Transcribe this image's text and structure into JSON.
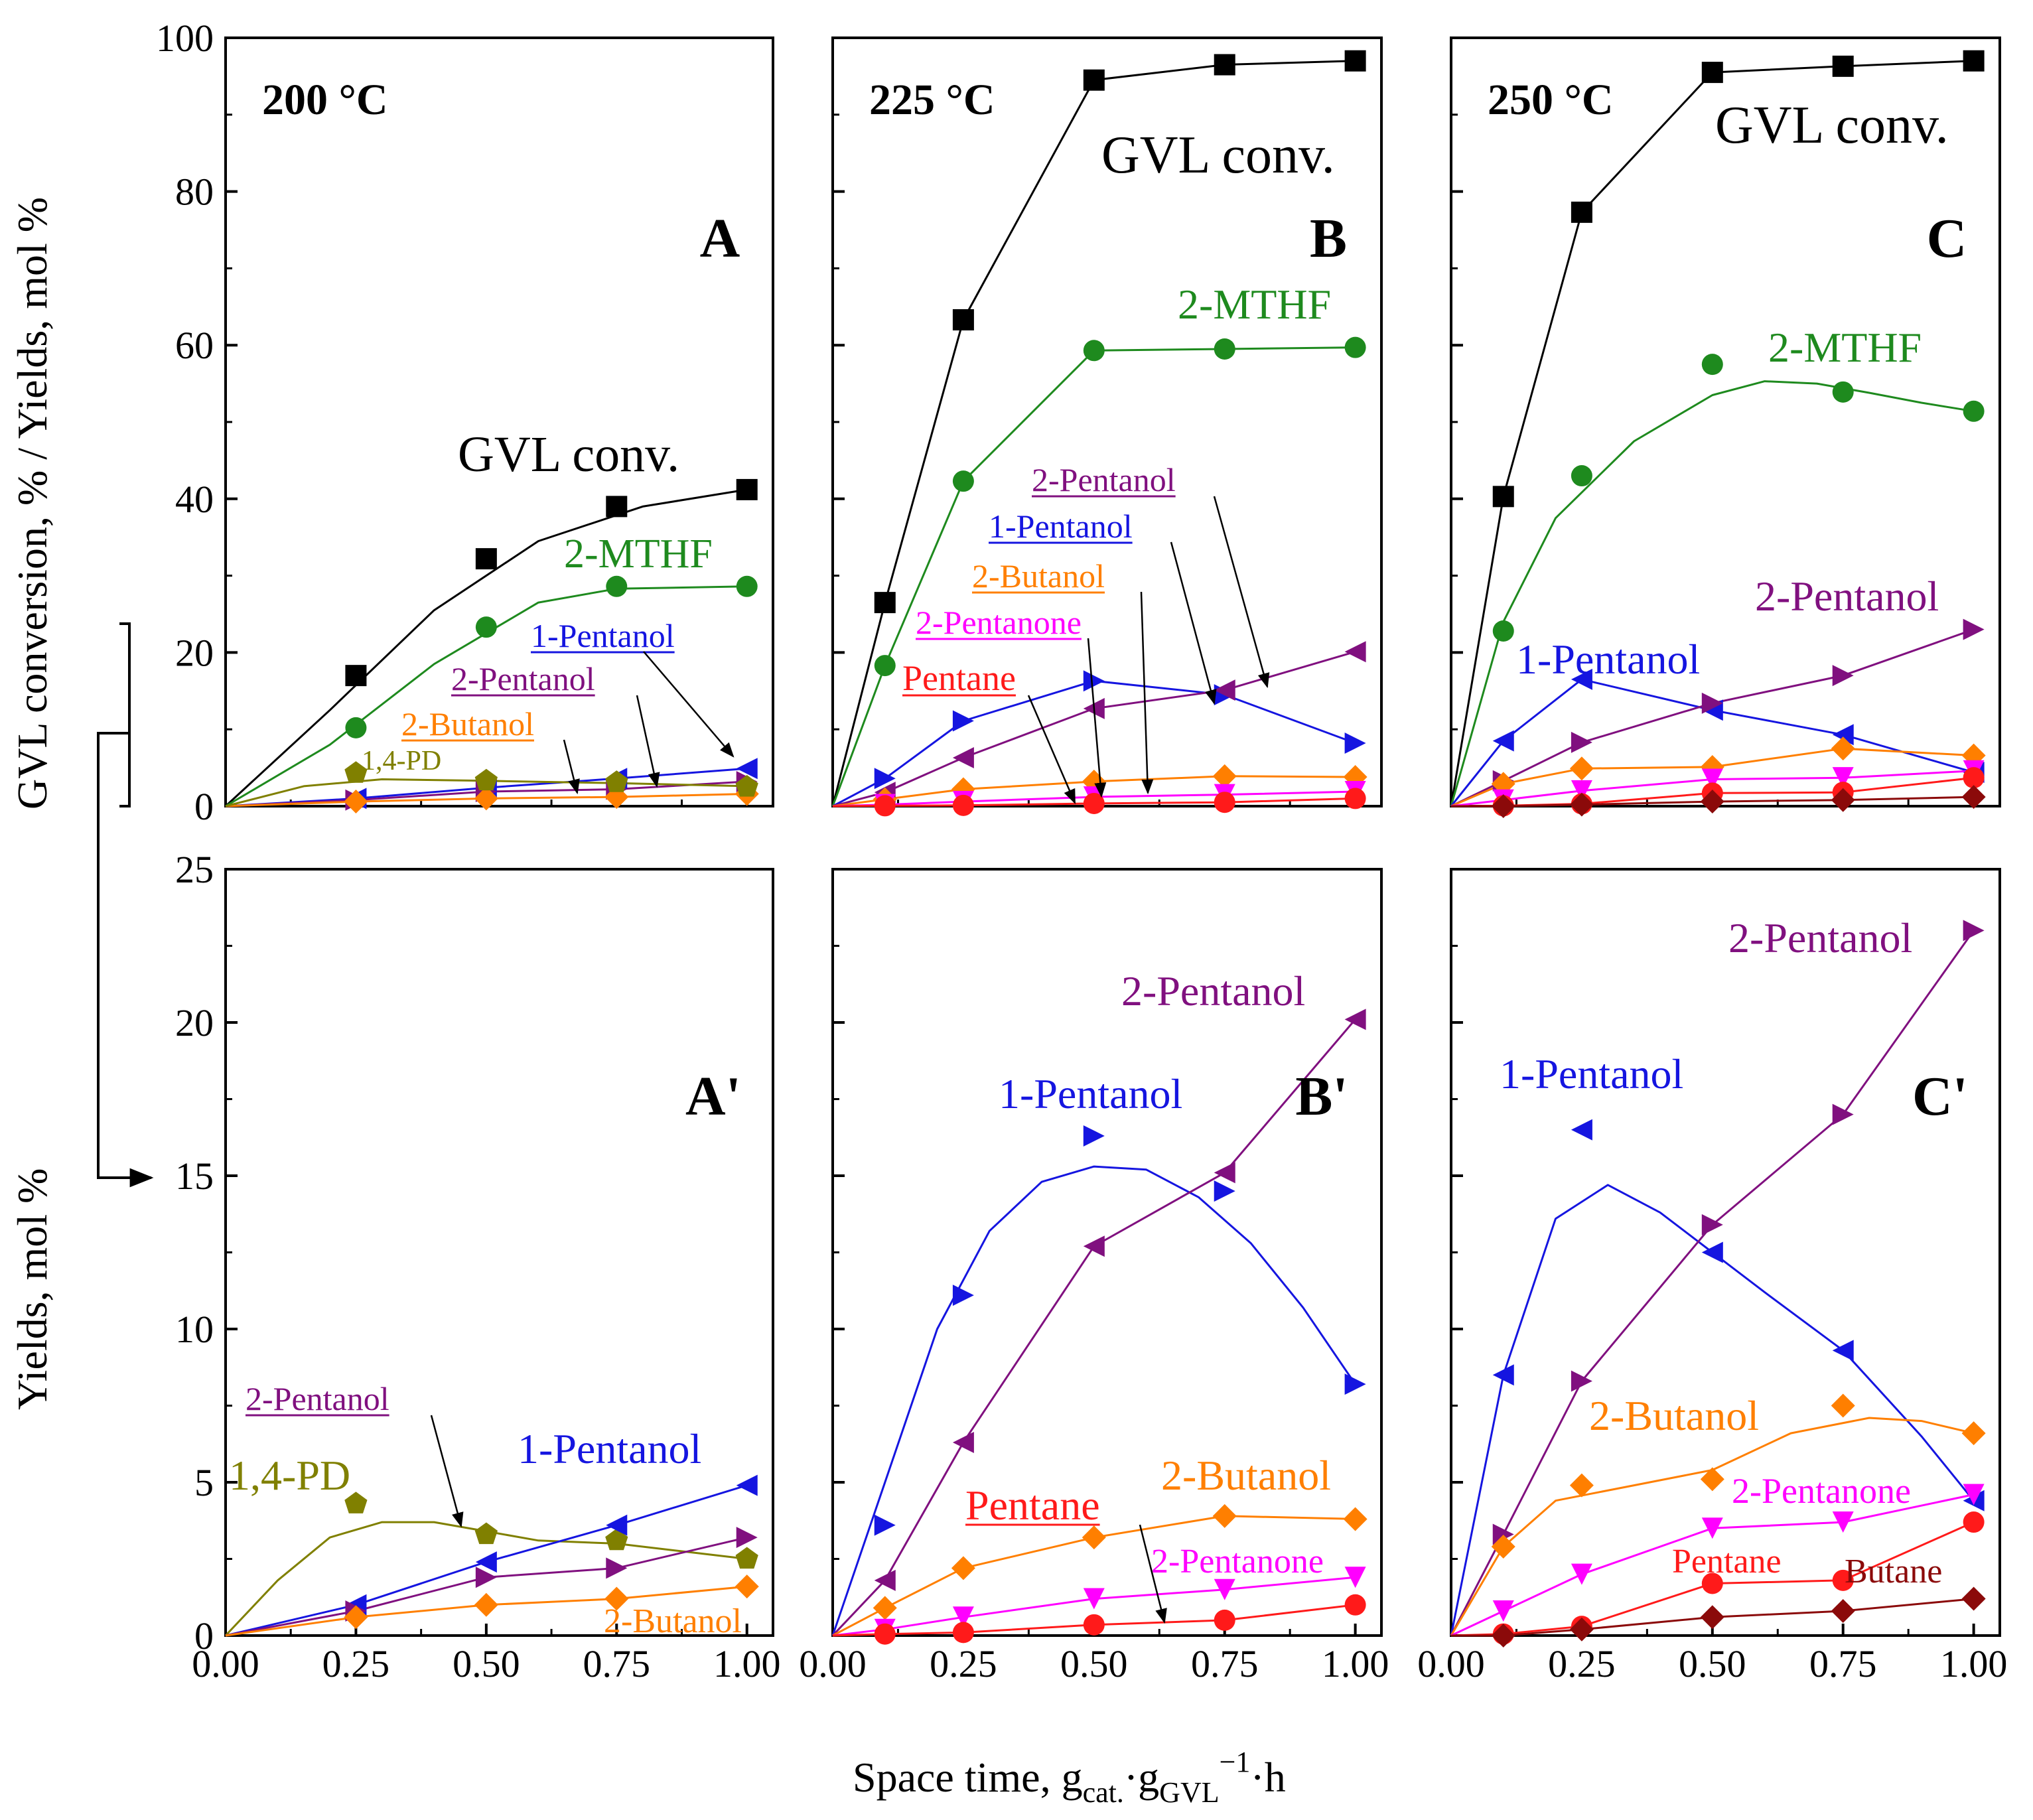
{
  "figure": {
    "y_label_top": "GVL conversion, % / Yields, mol %",
    "y_label_bottom": "Yields, mol %",
    "x_label": {
      "main": "Space time, g",
      "sub1": "cat.",
      "mid": "·g",
      "sub2": "GVL",
      "sup": "−1",
      "end": "·h"
    }
  },
  "chart_data": [
    {
      "panel": "A",
      "temperature": "200 °C",
      "type": "line",
      "xlim": [
        0,
        1.05
      ],
      "ylim": [
        0,
        100
      ],
      "xticks": [
        "0.00",
        "0.25",
        "0.50",
        "0.75",
        "1.00"
      ],
      "yticks": [
        "0",
        "20",
        "40",
        "60",
        "80",
        "100"
      ],
      "series": [
        {
          "name": "GVL conv.",
          "color": "#000000",
          "marker": "square",
          "x": [
            0,
            0.25,
            0.5,
            0.75,
            1.0
          ],
          "y": [
            0,
            17,
            32.2,
            39,
            41.2
          ],
          "curve": [
            [
              0,
              0
            ],
            [
              0.2,
              12.5
            ],
            [
              0.4,
              25.5
            ],
            [
              0.6,
              34.5
            ],
            [
              0.8,
              39
            ],
            [
              1.0,
              41.2
            ]
          ]
        },
        {
          "name": "2-MTHF",
          "color": "#1e8a1e",
          "marker": "circle",
          "x": [
            0,
            0.25,
            0.5,
            0.75,
            1.0
          ],
          "y": [
            0,
            10.2,
            23.3,
            28.6,
            28.6
          ],
          "curve": [
            [
              0,
              0
            ],
            [
              0.2,
              8
            ],
            [
              0.4,
              18.5
            ],
            [
              0.6,
              26.5
            ],
            [
              0.75,
              28.3
            ],
            [
              1.0,
              28.6
            ]
          ]
        },
        {
          "name": "1-Pentanol",
          "color": "#1515e0",
          "marker": "tri-left",
          "x": [
            0,
            0.25,
            0.5,
            0.75,
            1.0
          ],
          "y": [
            0,
            1,
            2.4,
            3.6,
            4.9
          ]
        },
        {
          "name": "2-Pentanol",
          "color": "#80107f",
          "marker": "tri-right",
          "x": [
            0,
            0.25,
            0.5,
            0.75,
            1.0
          ],
          "y": [
            0,
            0.8,
            1.9,
            2.2,
            3.2
          ]
        },
        {
          "name": "2-Butanol",
          "color": "#ff7f00",
          "marker": "diamond",
          "x": [
            0,
            0.25,
            0.5,
            0.75,
            1.0
          ],
          "y": [
            0,
            0.6,
            1,
            1.2,
            1.6
          ]
        },
        {
          "name": "1,4-PD",
          "color": "#808000",
          "marker": "pentagon",
          "x": [
            0,
            0.25,
            0.5,
            0.75,
            1.0
          ],
          "y": [
            0,
            4.3,
            3.3,
            3.1,
            2.5
          ],
          "curve": [
            [
              0,
              0
            ],
            [
              0.15,
              2.6
            ],
            [
              0.3,
              3.5
            ],
            [
              0.5,
              3.3
            ],
            [
              0.75,
              3
            ],
            [
              1.0,
              2.6
            ]
          ]
        }
      ]
    },
    {
      "panel": "B",
      "temperature": "225 °C",
      "type": "line",
      "xlim": [
        0,
        1.05
      ],
      "ylim": [
        0,
        100
      ],
      "series": [
        {
          "name": "GVL conv.",
          "color": "#000000",
          "marker": "square",
          "x": [
            0,
            0.1,
            0.25,
            0.5,
            0.75,
            1.0
          ],
          "y": [
            0,
            26.5,
            63.3,
            94.5,
            96.5,
            97
          ]
        },
        {
          "name": "2-MTHF",
          "color": "#1e8a1e",
          "marker": "circle",
          "x": [
            0,
            0.1,
            0.25,
            0.5,
            0.75,
            1.0
          ],
          "y": [
            0,
            18.3,
            42.3,
            59.3,
            59.5,
            59.7
          ]
        },
        {
          "name": "1-Pentanol",
          "color": "#1515e0",
          "marker": "tri-right",
          "x": [
            0,
            0.1,
            0.25,
            0.5,
            0.75,
            1.0
          ],
          "y": [
            0,
            3.6,
            11.1,
            16.3,
            14.5,
            8.2
          ]
        },
        {
          "name": "2-Pentanol",
          "color": "#80107f",
          "marker": "tri-left",
          "x": [
            0,
            0.1,
            0.25,
            0.5,
            0.75,
            1.0
          ],
          "y": [
            0,
            1.8,
            6.3,
            12.7,
            15.1,
            20.1
          ]
        },
        {
          "name": "2-Butanol",
          "color": "#ff7f00",
          "marker": "diamond",
          "x": [
            0,
            0.1,
            0.25,
            0.5,
            0.75,
            1.0
          ],
          "y": [
            0,
            0.9,
            2.2,
            3.2,
            3.9,
            3.8
          ]
        },
        {
          "name": "2-Pentanone",
          "color": "#ff00ff",
          "marker": "tri-down",
          "x": [
            0,
            0.1,
            0.25,
            0.5,
            0.75,
            1.0
          ],
          "y": [
            0,
            0.2,
            0.6,
            1.2,
            1.5,
            1.9
          ]
        },
        {
          "name": "Pentane",
          "color": "#ff1a1a",
          "marker": "circle",
          "x": [
            0,
            0.1,
            0.25,
            0.5,
            0.75,
            1.0
          ],
          "y": [
            0,
            0.05,
            0.1,
            0.35,
            0.5,
            1
          ]
        }
      ]
    },
    {
      "panel": "C",
      "temperature": "250 °C",
      "type": "line",
      "xlim": [
        0,
        1.05
      ],
      "ylim": [
        0,
        100
      ],
      "series": [
        {
          "name": "GVL conv.",
          "color": "#000000",
          "marker": "square",
          "x": [
            0,
            0.1,
            0.25,
            0.5,
            0.75,
            1.0
          ],
          "y": [
            0,
            40.3,
            77.3,
            95.5,
            96.3,
            97
          ]
        },
        {
          "name": "2-MTHF",
          "color": "#1e8a1e",
          "marker": "circle",
          "x": [
            0,
            0.1,
            0.25,
            0.5,
            0.75,
            1.0
          ],
          "y": [
            0,
            22.8,
            43,
            57.5,
            53.9,
            51.4
          ],
          "curve": [
            [
              0,
              0
            ],
            [
              0.1,
              24
            ],
            [
              0.2,
              37.5
            ],
            [
              0.35,
              47.5
            ],
            [
              0.5,
              53.5
            ],
            [
              0.6,
              55.3
            ],
            [
              0.7,
              55
            ],
            [
              0.8,
              53.8
            ],
            [
              0.9,
              52.5
            ],
            [
              1.0,
              51.4
            ]
          ]
        },
        {
          "name": "1-Pentanol",
          "color": "#1515e0",
          "marker": "tri-left",
          "x": [
            0,
            0.1,
            0.25,
            0.5,
            0.75,
            1.0
          ],
          "y": [
            0,
            8.5,
            16.5,
            12.5,
            9.3,
            4.4
          ]
        },
        {
          "name": "2-Pentanol",
          "color": "#80107f",
          "marker": "tri-right",
          "x": [
            0,
            0.1,
            0.25,
            0.5,
            0.75,
            1.0
          ],
          "y": [
            0,
            3.3,
            8.3,
            13.4,
            17,
            23
          ]
        },
        {
          "name": "2-Butanol",
          "color": "#ff7f00",
          "marker": "diamond",
          "x": [
            0,
            0.1,
            0.25,
            0.5,
            0.75,
            1.0
          ],
          "y": [
            0,
            2.9,
            4.9,
            5.1,
            7.5,
            6.6
          ]
        },
        {
          "name": "2-Pentanone",
          "color": "#ff00ff",
          "marker": "tri-down",
          "x": [
            0,
            0.1,
            0.25,
            0.5,
            0.75,
            1.0
          ],
          "y": [
            0,
            0.8,
            2,
            3.5,
            3.7,
            4.6
          ]
        },
        {
          "name": "Pentane",
          "color": "#ff1a1a",
          "marker": "circle",
          "x": [
            0,
            0.1,
            0.25,
            0.5,
            0.75,
            1.0
          ],
          "y": [
            0,
            0.05,
            0.3,
            1.7,
            1.8,
            3.7
          ]
        },
        {
          "name": "Butane",
          "color": "#8b0a0a",
          "marker": "diamond",
          "x": [
            0,
            0.1,
            0.25,
            0.5,
            0.75,
            1.0
          ],
          "y": [
            0,
            0,
            0.2,
            0.6,
            0.8,
            1.2
          ]
        }
      ]
    },
    {
      "panel": "A'",
      "type": "line",
      "xlim": [
        0,
        1.05
      ],
      "ylim": [
        0,
        25
      ],
      "xticks": [
        "0.00",
        "0.25",
        "0.50",
        "0.75",
        "1.00"
      ],
      "yticks": [
        "0",
        "5",
        "10",
        "15",
        "20",
        "25"
      ],
      "series": [
        {
          "name": "1,4-PD",
          "color": "#808000",
          "marker": "pentagon",
          "x": [
            0,
            0.25,
            0.5,
            0.75,
            1.0
          ],
          "y": [
            0,
            4.3,
            3.3,
            3.1,
            2.5
          ],
          "curve": [
            [
              0,
              0
            ],
            [
              0.1,
              1.8
            ],
            [
              0.2,
              3.2
            ],
            [
              0.3,
              3.7
            ],
            [
              0.4,
              3.7
            ],
            [
              0.5,
              3.4
            ],
            [
              0.6,
              3.1
            ],
            [
              0.75,
              3
            ],
            [
              0.9,
              2.7
            ],
            [
              1.0,
              2.5
            ]
          ]
        },
        {
          "name": "1-Pentanol",
          "color": "#1515e0",
          "marker": "tri-left",
          "x": [
            0,
            0.25,
            0.5,
            0.75,
            1.0
          ],
          "y": [
            0,
            1,
            2.4,
            3.6,
            4.9
          ]
        },
        {
          "name": "2-Pentanol",
          "color": "#80107f",
          "marker": "tri-right",
          "x": [
            0,
            0.25,
            0.5,
            0.75,
            1.0
          ],
          "y": [
            0,
            0.8,
            1.9,
            2.2,
            3.2
          ]
        },
        {
          "name": "2-Butanol",
          "color": "#ff7f00",
          "marker": "diamond",
          "x": [
            0,
            0.25,
            0.5,
            0.75,
            1.0
          ],
          "y": [
            0,
            0.6,
            1,
            1.2,
            1.6
          ]
        }
      ]
    },
    {
      "panel": "B'",
      "type": "line",
      "xlim": [
        0,
        1.05
      ],
      "ylim": [
        0,
        25
      ],
      "series": [
        {
          "name": "1-Pentanol",
          "color": "#1515e0",
          "marker": "tri-right",
          "x": [
            0,
            0.1,
            0.25,
            0.5,
            0.75,
            1.0
          ],
          "y": [
            0,
            3.6,
            11.1,
            16.3,
            14.5,
            8.2
          ],
          "curve": [
            [
              0,
              0
            ],
            [
              0.1,
              5
            ],
            [
              0.2,
              10
            ],
            [
              0.3,
              13.2
            ],
            [
              0.4,
              14.8
            ],
            [
              0.5,
              15.3
            ],
            [
              0.6,
              15.2
            ],
            [
              0.7,
              14.3
            ],
            [
              0.8,
              12.8
            ],
            [
              0.9,
              10.7
            ],
            [
              1.0,
              8.2
            ]
          ]
        },
        {
          "name": "2-Pentanol",
          "color": "#80107f",
          "marker": "tri-left",
          "x": [
            0,
            0.1,
            0.25,
            0.5,
            0.75,
            1.0
          ],
          "y": [
            0,
            1.8,
            6.3,
            12.7,
            15.1,
            20.1
          ]
        },
        {
          "name": "2-Butanol",
          "color": "#ff7f00",
          "marker": "diamond",
          "x": [
            0,
            0.1,
            0.25,
            0.5,
            0.75,
            1.0
          ],
          "y": [
            0,
            0.9,
            2.2,
            3.2,
            3.9,
            3.8
          ]
        },
        {
          "name": "2-Pentanone",
          "color": "#ff00ff",
          "marker": "tri-down",
          "x": [
            0,
            0.1,
            0.25,
            0.5,
            0.75,
            1.0
          ],
          "y": [
            0,
            0.2,
            0.6,
            1.2,
            1.5,
            1.9
          ]
        },
        {
          "name": "Pentane",
          "color": "#ff1a1a",
          "marker": "circle",
          "x": [
            0,
            0.1,
            0.25,
            0.5,
            0.75,
            1.0
          ],
          "y": [
            0,
            0.05,
            0.1,
            0.35,
            0.5,
            1
          ]
        }
      ]
    },
    {
      "panel": "C'",
      "type": "line",
      "xlim": [
        0,
        1.05
      ],
      "ylim": [
        0,
        25
      ],
      "series": [
        {
          "name": "1-Pentanol",
          "color": "#1515e0",
          "marker": "tri-left",
          "x": [
            0,
            0.1,
            0.25,
            0.5,
            0.75,
            1.0
          ],
          "y": [
            0,
            8.5,
            16.5,
            12.5,
            9.3,
            4.4
          ],
          "curve": [
            [
              0,
              0
            ],
            [
              0.1,
              8.5
            ],
            [
              0.2,
              13.6
            ],
            [
              0.3,
              14.7
            ],
            [
              0.4,
              13.8
            ],
            [
              0.5,
              12.5
            ],
            [
              0.6,
              11.2
            ],
            [
              0.75,
              9.3
            ],
            [
              0.9,
              6.5
            ],
            [
              1.0,
              4.4
            ]
          ]
        },
        {
          "name": "2-Pentanol",
          "color": "#80107f",
          "marker": "tri-right",
          "x": [
            0,
            0.1,
            0.25,
            0.5,
            0.75,
            1.0
          ],
          "y": [
            0,
            3.3,
            8.3,
            13.4,
            17,
            23
          ]
        },
        {
          "name": "2-Butanol",
          "color": "#ff7f00",
          "marker": "diamond",
          "x": [
            0,
            0.1,
            0.25,
            0.5,
            0.75,
            1.0
          ],
          "y": [
            0,
            2.9,
            4.9,
            5.1,
            7.5,
            6.6
          ],
          "curve": [
            [
              0,
              0
            ],
            [
              0.1,
              2.9
            ],
            [
              0.2,
              4.4
            ],
            [
              0.35,
              4.9
            ],
            [
              0.5,
              5.4
            ],
            [
              0.65,
              6.6
            ],
            [
              0.8,
              7.1
            ],
            [
              0.9,
              7
            ],
            [
              1.0,
              6.6
            ]
          ]
        },
        {
          "name": "2-Pentanone",
          "color": "#ff00ff",
          "marker": "tri-down",
          "x": [
            0,
            0.1,
            0.25,
            0.5,
            0.75,
            1.0
          ],
          "y": [
            0,
            0.8,
            2,
            3.5,
            3.7,
            4.6
          ]
        },
        {
          "name": "Pentane",
          "color": "#ff1a1a",
          "marker": "circle",
          "x": [
            0,
            0.1,
            0.25,
            0.5,
            0.75,
            1.0
          ],
          "y": [
            0,
            0.05,
            0.3,
            1.7,
            1.8,
            3.7
          ]
        },
        {
          "name": "Butane",
          "color": "#8b0a0a",
          "marker": "diamond",
          "x": [
            0,
            0.1,
            0.25,
            0.5,
            0.75,
            1.0
          ],
          "y": [
            0,
            0,
            0.2,
            0.6,
            0.8,
            1.2
          ]
        }
      ]
    }
  ]
}
